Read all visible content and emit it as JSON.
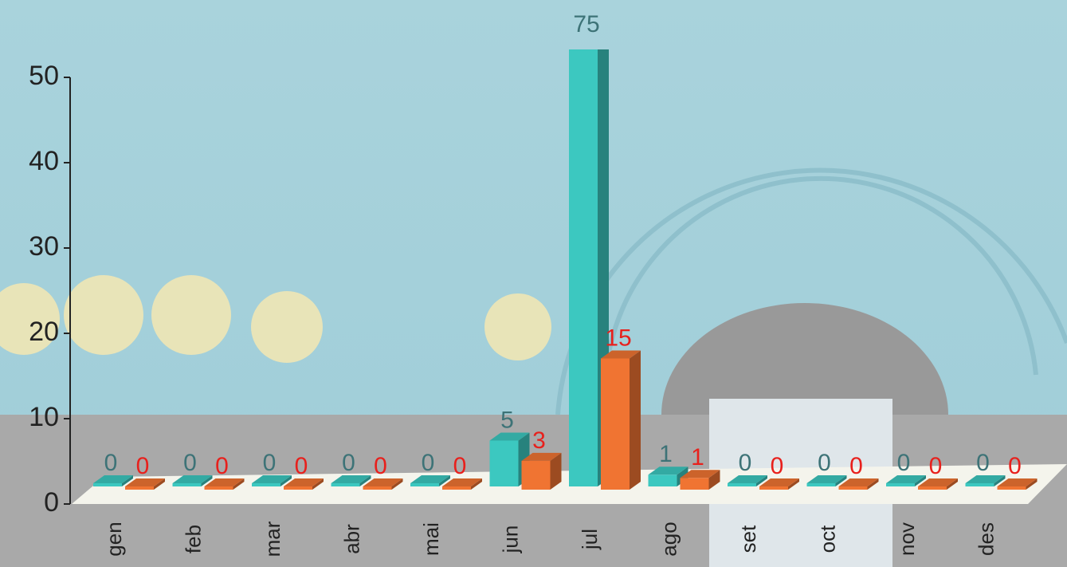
{
  "chart_data": {
    "type": "bar3d",
    "categories": [
      "gen",
      "feb",
      "mar",
      "abr",
      "mai",
      "jun",
      "jul",
      "ago",
      "set",
      "oct",
      "nov",
      "des"
    ],
    "series": [
      {
        "color": "#3cc8c0",
        "label_color": "#3d7377",
        "values": [
          0,
          0,
          0,
          0,
          0,
          5,
          75,
          1,
          0,
          0,
          0,
          0
        ]
      },
      {
        "color": "#f07432",
        "label_color": "#e8201c",
        "values": [
          0,
          0,
          0,
          0,
          0,
          3,
          15,
          1,
          0,
          0,
          0,
          0
        ]
      }
    ],
    "ylim": [
      0,
      50
    ],
    "yticks": [
      0,
      10,
      20,
      30,
      40,
      50
    ]
  }
}
